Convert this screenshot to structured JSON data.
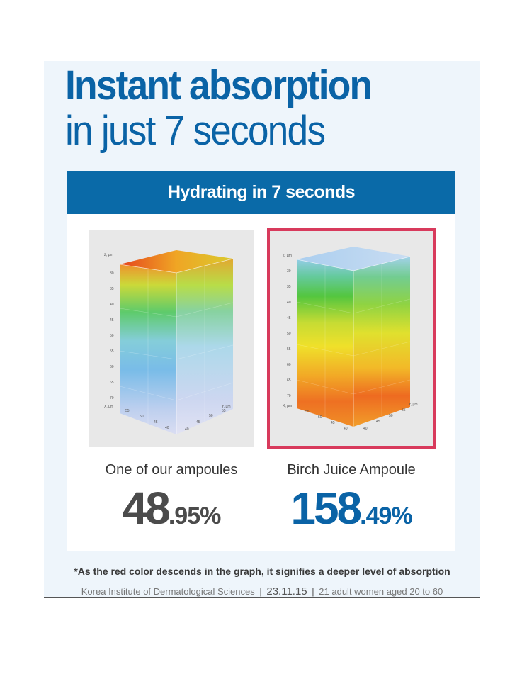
{
  "headline": {
    "line1": "Instant absorption",
    "line2": "in just 7 seconds"
  },
  "banner": {
    "title": "Hydrating in 7 seconds"
  },
  "comparison": [
    {
      "label": "One of our ampoules",
      "value_major": "48",
      "value_minor": ".95%"
    },
    {
      "label": "Birch Juice Ampoule",
      "value_major": "158",
      "value_minor": ".49%"
    }
  ],
  "chart_axis": {
    "z_label": "Z, µm",
    "x_label": "X, µm",
    "y_label": "Y, µm",
    "z_ticks": [
      "30",
      "35",
      "40",
      "45",
      "50",
      "55",
      "60",
      "65",
      "70"
    ],
    "x_ticks": [
      "55",
      "50",
      "45",
      "40"
    ],
    "y_ticks": [
      "40",
      "45",
      "50",
      "55"
    ]
  },
  "footnote": "*As the red color descends in the graph, it signifies a deeper level of absorption",
  "source": {
    "institute": "Korea Institute of Dermatological Sciences",
    "separator": "|",
    "date": "23.11.15",
    "subjects": "21 adult women aged 20 to 60"
  },
  "colors": {
    "brand_blue": "#0a63a6",
    "banner_blue": "#0a6aa8",
    "highlight_border": "#d83a5c",
    "value_gray": "#4b4b4b"
  }
}
